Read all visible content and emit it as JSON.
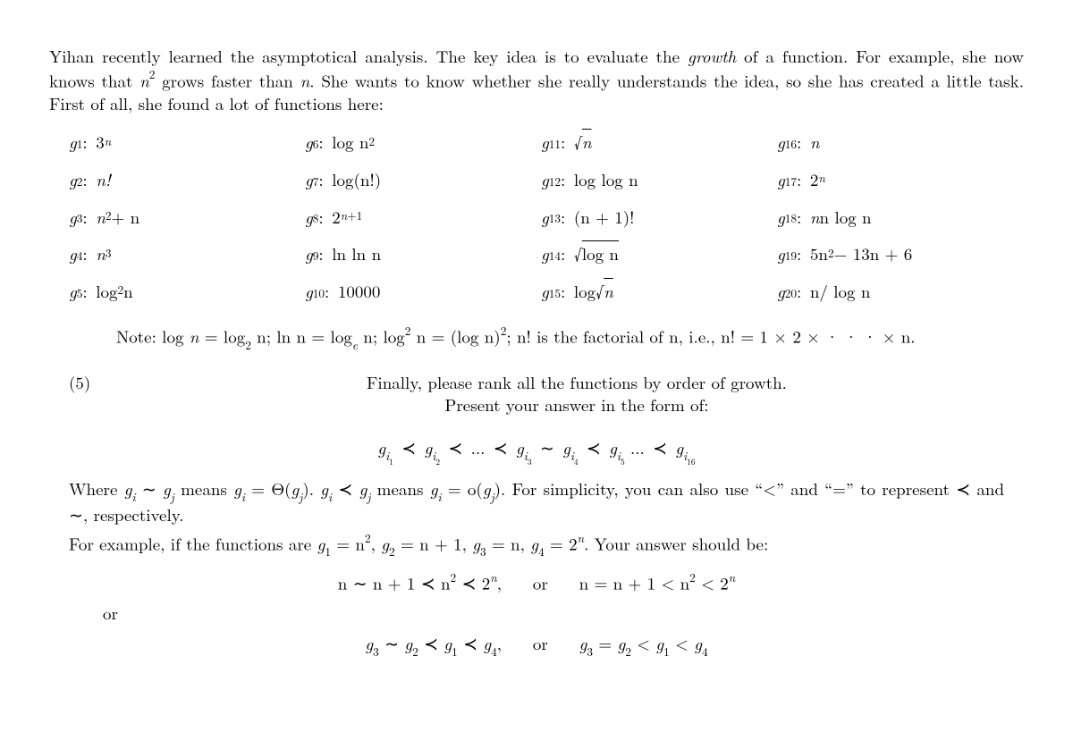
{
  "intro": {
    "t1": "Yihan recently learned the asymptotical analysis. The key idea is to evaluate the ",
    "growth": "growth",
    "t2": " of a function. For example, she now knows that ",
    "n2": "n",
    "t3": " grows faster than ",
    "n": "n",
    "t4": ". She wants to know whether she really understands the idea, so she has created a little task. First of all, she found a lot of functions here:"
  },
  "funcs": {
    "g1": "3",
    "g1_sup": "n",
    "g2": "n!",
    "g3a": "n",
    "g3b": " + n",
    "g4": "n",
    "g5a": "log",
    "g5b": " n",
    "g6a": "log n",
    "g7": "log(n!)",
    "g8a": "2",
    "g9": "ln ln n",
    "g10": "10000",
    "g11": "n",
    "g12": "log log n",
    "g13": "(n + 1)!",
    "g14": "log n",
    "g15a": "log ",
    "g15b": "n",
    "g16": "n",
    "g17": "2",
    "g18": "n log n",
    "g19a": "5n",
    "g19b": " − 13n + 6",
    "g20": "n/ log n"
  },
  "labels": {
    "g1": "g",
    "c": " : ",
    "i1": "1",
    "i2": "2",
    "i3": "3",
    "i4": "4",
    "i5": "5",
    "i6": "6",
    "i7": "7",
    "i8": "8",
    "i9": "9",
    "i10": "10",
    "i11": "11",
    "i12": "12",
    "i13": "13",
    "i14": "14",
    "i15": "15",
    "i16": "16",
    "i17": "17",
    "i18": "18",
    "i19": "19",
    "i20": "20"
  },
  "note": {
    "lead": "Note:  log ",
    "n1": "n",
    "eq1": " = log",
    "b2": "2",
    "sp1": " n;  ln n = log",
    "e": "e",
    "sp2": " n;  log",
    "sq": "2",
    "sp3": " n = (log n)",
    "sq2": "2",
    "sp4": ";  n! is the factorial of n, i.e., n! = 1 × 2 × · · · × n."
  },
  "task": {
    "num": "(5)",
    "line1": "Finally, please rank all the functions by order of growth.",
    "line2": "Present your answer in the form of:"
  },
  "chain": {
    "g": "g",
    "i1": "i",
    "s1": "1",
    "s2": "2",
    "s3": "3",
    "s4": "4",
    "s5": "5",
    "s16": "16",
    "prec": " ≺ ",
    "tilde": " ∼ ",
    "dots": " ... "
  },
  "explain": {
    "t1": "Where ",
    "gi": "g",
    "ii": "i",
    "til": " ∼ ",
    "gj": "g",
    "ij": "j",
    "t2": " means ",
    "eq1": " = Θ(",
    "cl1": ").  ",
    "prec": " ≺ ",
    "eq2": " = o(",
    "t3": ").  For simplicity, you can also use “<” and “=” to represent ≺ and ∼, respectively."
  },
  "example": {
    "t1": "For example, if the functions are ",
    "g1": "g",
    "s1": "1",
    "e1": " = n",
    "p2": "2",
    "c": ", ",
    "s2": "2",
    "e2": " = n + 1, ",
    "s3": "3",
    "e3": " = n, ",
    "s4": "4",
    "e4": " = 2",
    "pn": "n",
    "tail": ". Your answer should be:"
  },
  "eq1": {
    "a": "n ∼ n + 1 ≺ n",
    "p2": "2",
    "b": " ≺ 2",
    "pn": "n",
    "comma": ",",
    "or": "or",
    "a2": "n = n + 1 < n",
    "b2": " < 2"
  },
  "orword": "or",
  "eq2": {
    "a": "g",
    "s3": "3",
    "til": " ∼ ",
    "s2": "2",
    "pr": " ≺ ",
    "s1": "1",
    "s4": "4",
    "comma": ",",
    "or": "or",
    "eq": " = ",
    "lt": " < "
  }
}
